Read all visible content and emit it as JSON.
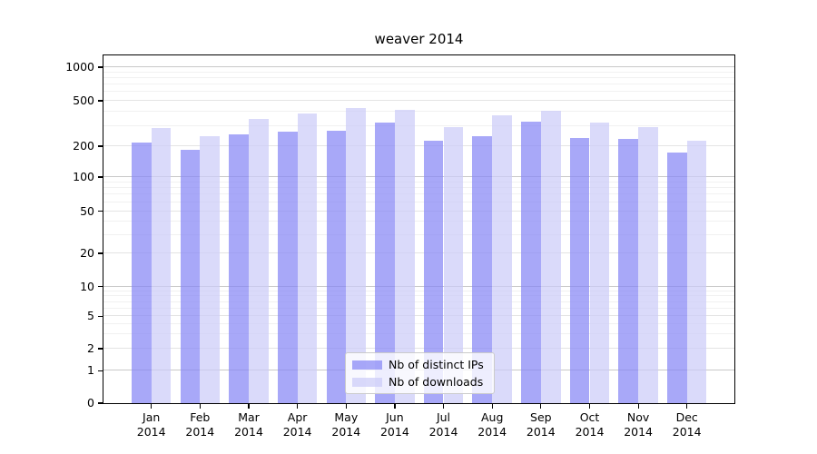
{
  "title": "weaver 2014",
  "chart_data": {
    "type": "bar",
    "title": "weaver 2014",
    "xlabel": "",
    "ylabel": "",
    "yscale": "symlog",
    "ylim": [
      0,
      1200
    ],
    "grid": true,
    "legend_position": "lower center",
    "yticks": [
      0,
      1,
      2,
      5,
      10,
      20,
      50,
      100,
      200,
      500,
      1000
    ],
    "categories": [
      "Jan",
      "Feb",
      "Mar",
      "Apr",
      "May",
      "Jun",
      "Jul",
      "Aug",
      "Sep",
      "Oct",
      "Nov",
      "Dec"
    ],
    "year": "2014",
    "series": [
      {
        "name": "Nb of distinct IPs",
        "color": "rgba(134,134,245,0.72)",
        "values": [
          215,
          185,
          255,
          270,
          275,
          320,
          225,
          245,
          330,
          235,
          230,
          175
        ]
      },
      {
        "name": "Nb of downloads",
        "color": "rgba(204,204,248,0.72)",
        "values": [
          290,
          245,
          350,
          390,
          430,
          415,
          295,
          370,
          410,
          320,
          295,
          225
        ]
      }
    ]
  }
}
